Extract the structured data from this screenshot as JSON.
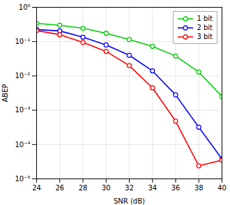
{
  "chart_data": {
    "type": "line",
    "xlabel": "SNR (dB)",
    "ylabel": "ABEP",
    "x": [
      24,
      26,
      28,
      30,
      32,
      34,
      36,
      38,
      40
    ],
    "series": [
      {
        "name": "1 bit",
        "color": "#00cc00",
        "marker": "circle",
        "values": [
          0.34,
          0.3,
          0.245,
          0.175,
          0.115,
          0.073,
          0.038,
          0.013,
          0.0025
        ]
      },
      {
        "name": "2 bit",
        "color": "#0000ff",
        "marker": "circle",
        "values": [
          0.225,
          0.205,
          0.135,
          0.08,
          0.04,
          0.014,
          0.0028,
          0.00032,
          3.8e-05
        ]
      },
      {
        "name": "3 bit",
        "color": "#ff0000",
        "marker": "circle",
        "values": [
          0.21,
          0.16,
          0.095,
          0.052,
          0.02,
          0.0045,
          0.00048,
          2.4e-05,
          3.5e-05
        ]
      }
    ],
    "xlim": [
      24,
      40
    ],
    "xticks": [
      24,
      26,
      28,
      30,
      32,
      34,
      36,
      38,
      40
    ],
    "ylim": [
      1e-05,
      1
    ],
    "yticks": [
      {
        "value": 1e-05,
        "label": "10⁻⁵"
      },
      {
        "value": 0.0001,
        "label": "10⁻⁴"
      },
      {
        "value": 0.001,
        "label": "10⁻³"
      },
      {
        "value": 0.01,
        "label": "10⁻²"
      },
      {
        "value": 0.1,
        "label": "10⁻¹"
      },
      {
        "value": 1,
        "label": "10⁰"
      }
    ],
    "log": "y",
    "grid": true,
    "legend": "upper right"
  }
}
